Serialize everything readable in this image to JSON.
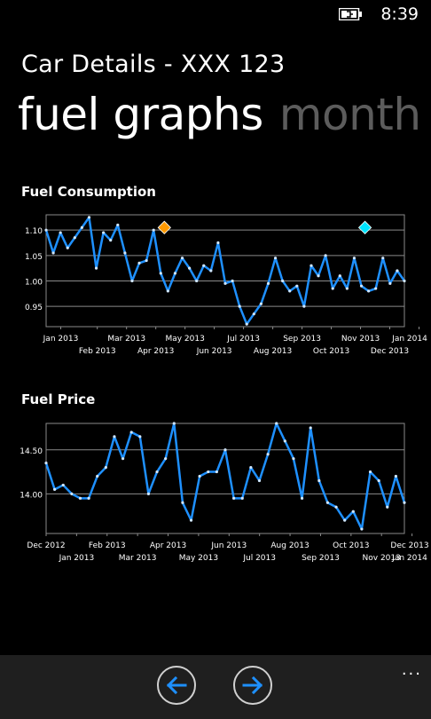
{
  "status": {
    "time": "8:39",
    "battery_icon": "battery-charging-icon"
  },
  "header": {
    "app_title": "Car Details - XXX 123",
    "pivot_active": "fuel graphs",
    "pivot_inactive": "month"
  },
  "sections": {
    "consumption_title": "Fuel Consumption",
    "price_title": "Fuel Price"
  },
  "appbar": {
    "back_icon": "arrow-left-icon",
    "forward_icon": "arrow-right-icon",
    "more_label": "..."
  },
  "colors": {
    "line": "#1e90ff",
    "marker_orange": "#ff9900",
    "marker_cyan": "#00e5ff"
  },
  "chart_data": [
    {
      "type": "line",
      "title": "Fuel Consumption",
      "ylim": [
        0.91,
        1.13
      ],
      "yticks": [
        0.95,
        1.0,
        1.05,
        1.1
      ],
      "ytick_labels": [
        "0.95",
        "1.00",
        "1.05",
        "1.10"
      ],
      "xlim": [
        0,
        49
      ],
      "xticks": [
        {
          "pos": 2,
          "label": "Jan 2013",
          "row": 0
        },
        {
          "pos": 7,
          "label": "Feb 2013",
          "row": 1
        },
        {
          "pos": 11,
          "label": "Mar 2013",
          "row": 0
        },
        {
          "pos": 15,
          "label": "Apr 2013",
          "row": 1
        },
        {
          "pos": 19,
          "label": "May 2013",
          "row": 0
        },
        {
          "pos": 23,
          "label": "Jun 2013",
          "row": 1
        },
        {
          "pos": 27,
          "label": "Jul 2013",
          "row": 0
        },
        {
          "pos": 31,
          "label": "Aug 2013",
          "row": 1
        },
        {
          "pos": 35,
          "label": "Sep 2013",
          "row": 0
        },
        {
          "pos": 39,
          "label": "Oct 2013",
          "row": 1
        },
        {
          "pos": 43,
          "label": "Nov 2013",
          "row": 0
        },
        {
          "pos": 47,
          "label": "Dec 2013",
          "row": 1
        },
        {
          "pos": 51,
          "label": "Jan 2014",
          "row": 0
        }
      ],
      "values": [
        1.1,
        1.055,
        1.095,
        1.065,
        1.085,
        1.105,
        1.125,
        1.025,
        1.095,
        1.08,
        1.11,
        1.055,
        1.0,
        1.035,
        1.04,
        1.1,
        1.015,
        0.98,
        1.015,
        1.045,
        1.025,
        1.0,
        1.03,
        1.02,
        1.075,
        0.995,
        1.0,
        0.95,
        0.915,
        0.935,
        0.955,
        0.995,
        1.045,
        1.0,
        0.98,
        0.99,
        0.95,
        1.03,
        1.01,
        1.05,
        0.985,
        1.01,
        0.985,
        1.045,
        0.99,
        0.98,
        0.985,
        1.045,
        0.995,
        1.02,
        1.0
      ],
      "markers": [
        {
          "x": 16.5,
          "y": 1.105,
          "color": "#ff9900"
        },
        {
          "x": 44.5,
          "y": 1.105,
          "color": "#00e5ff"
        }
      ]
    },
    {
      "type": "line",
      "title": "Fuel Price",
      "ylim": [
        13.55,
        14.8
      ],
      "yticks": [
        14.0,
        14.5
      ],
      "ytick_labels": [
        "14.00",
        "14.50"
      ],
      "xlim": [
        0,
        47
      ],
      "xticks": [
        {
          "pos": 0,
          "label": "Dec 2012",
          "row": 0
        },
        {
          "pos": 4,
          "label": "Jan 2013",
          "row": 1
        },
        {
          "pos": 8,
          "label": "Feb 2013",
          "row": 0
        },
        {
          "pos": 12,
          "label": "Mar 2013",
          "row": 1
        },
        {
          "pos": 16,
          "label": "Apr 2013",
          "row": 0
        },
        {
          "pos": 20,
          "label": "May 2013",
          "row": 1
        },
        {
          "pos": 24,
          "label": "Jun 2013",
          "row": 0
        },
        {
          "pos": 28,
          "label": "Jul 2013",
          "row": 1
        },
        {
          "pos": 32,
          "label": "Aug 2013",
          "row": 0
        },
        {
          "pos": 36,
          "label": "Sep 2013",
          "row": 1
        },
        {
          "pos": 40,
          "label": "Oct 2013",
          "row": 0
        },
        {
          "pos": 44,
          "label": "Nov 2013",
          "row": 1
        },
        {
          "pos": 48,
          "label": "Dec 2013",
          "row": 0
        },
        {
          "pos": 52,
          "label": "Jan 2014",
          "row": 1
        }
      ],
      "values": [
        14.35,
        14.05,
        14.1,
        14.0,
        13.95,
        13.95,
        14.2,
        14.3,
        14.65,
        14.4,
        14.7,
        14.65,
        14.0,
        14.25,
        14.4,
        14.8,
        13.9,
        13.7,
        14.2,
        14.25,
        14.25,
        14.5,
        13.95,
        13.95,
        14.3,
        14.15,
        14.45,
        14.8,
        14.6,
        14.4,
        13.95,
        14.75,
        14.15,
        13.9,
        13.85,
        13.7,
        13.8,
        13.6,
        14.25,
        14.15,
        13.85,
        14.2,
        13.9
      ]
    }
  ]
}
